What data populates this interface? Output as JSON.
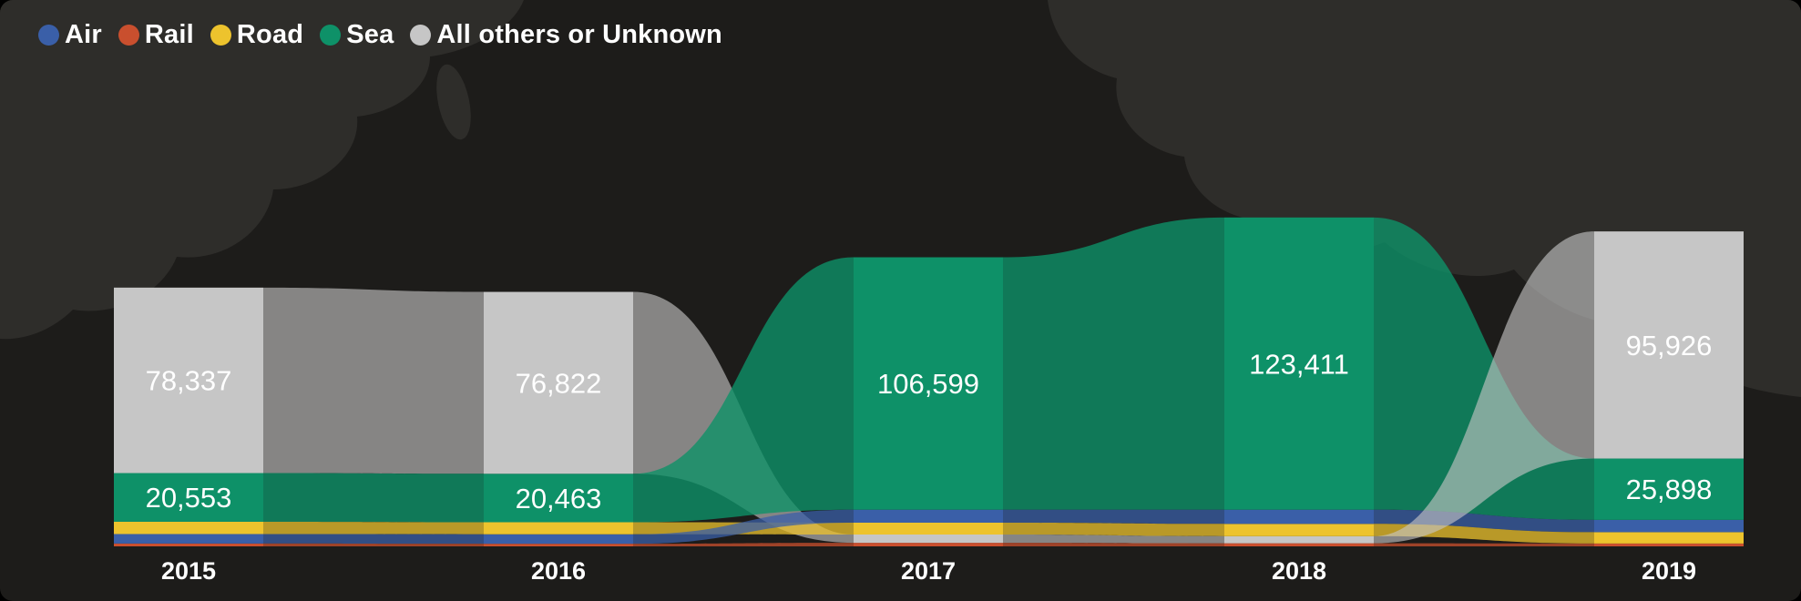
{
  "chart_data": {
    "type": "ribbon",
    "title": "",
    "categories": [
      "2015",
      "2016",
      "2017",
      "2018",
      "2019"
    ],
    "series": [
      {
        "name": "Air",
        "color": "#3a5fa8",
        "connector_opacity": 0.75,
        "values": [
          4000,
          4000,
          5500,
          6000,
          5200
        ]
      },
      {
        "name": "Rail",
        "color": "#c94f2e",
        "connector_opacity": 0.75,
        "values": [
          1200,
          1100,
          1500,
          1300,
          1200
        ]
      },
      {
        "name": "Road",
        "color": "#edc32d",
        "connector_opacity": 0.75,
        "values": [
          5200,
          5100,
          5000,
          5200,
          4800
        ]
      },
      {
        "name": "Sea",
        "color": "#0e9168",
        "connector_opacity": 0.8,
        "values": [
          20553,
          20463,
          106599,
          123411,
          25898
        ]
      },
      {
        "name": "All others or Unknown",
        "color": "#c6c6c6",
        "connector_opacity": 0.62,
        "values": [
          78337,
          76822,
          3500,
          3000,
          95926
        ]
      }
    ],
    "value_labels_visible": [
      "78,337",
      "20,553",
      "76,822",
      "20,463",
      "106,599",
      "123,411",
      "95,926",
      "25,898"
    ],
    "label_threshold": 20000,
    "legend_position": "top-left",
    "background": "#1d1c1a",
    "map_color": "#2e2d2a",
    "text_color": "#ffffff",
    "x_axis_labels": [
      "2015",
      "2016",
      "2017",
      "2018",
      "2019"
    ]
  }
}
